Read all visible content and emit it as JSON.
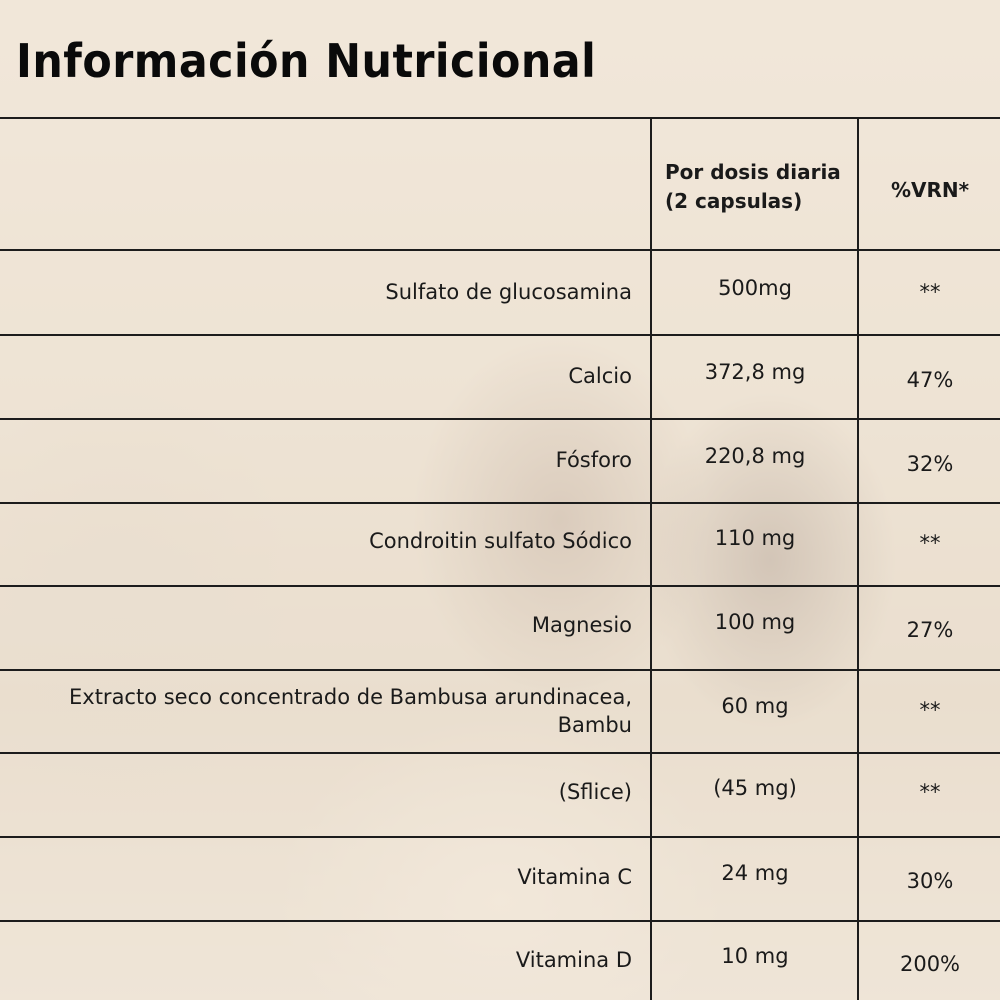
{
  "title": "Información Nutricional",
  "header": {
    "dose_line1": "Por dosis diaria",
    "dose_line2": "(2 capsulas)",
    "vrn": "%VRN*"
  },
  "rows": [
    {
      "name": "Sulfato de glucosamina",
      "dose": "500mg",
      "vrn": "**"
    },
    {
      "name": "Calcio",
      "dose": "372,8 mg",
      "vrn": "47%"
    },
    {
      "name": "Fósforo",
      "dose": "220,8 mg",
      "vrn": "32%"
    },
    {
      "name": "Condroitin sulfato Sódico",
      "dose": "110 mg",
      "vrn": "**"
    },
    {
      "name": "Magnesio",
      "dose": "100 mg",
      "vrn": "27%"
    },
    {
      "name_line1": "Extracto seco concentrado de Bambusa arundinacea,",
      "name_line2": "Bambu",
      "dose": "60 mg",
      "vrn": "**"
    },
    {
      "name": "(Sflice)",
      "dose": "(45 mg)",
      "vrn": "**"
    },
    {
      "name": "Vitamina C",
      "dose": "24 mg",
      "vrn": "30%"
    },
    {
      "name": "Vitamina D",
      "dose": "10 mg",
      "vrn": "200%"
    }
  ]
}
